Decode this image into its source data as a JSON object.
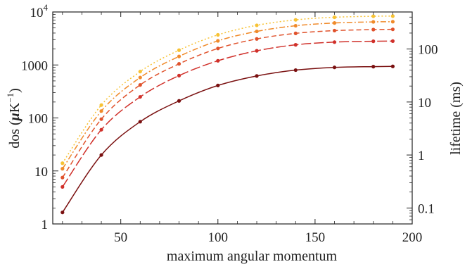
{
  "chart_data": {
    "type": "line",
    "xlabel": "maximum angular momentum",
    "ylabel_left": {
      "prefix": "dos (",
      "mu": "μ",
      "unit": "K",
      "exp": "−1",
      "suffix": ")"
    },
    "ylabel_right": "lifetime (ms)",
    "xlim": [
      15,
      200
    ],
    "ylim_left": [
      1,
      10000
    ],
    "ylim_right_ms": [
      0.05,
      500
    ],
    "yscale": "log",
    "grid": false,
    "x_ticks": [
      {
        "value": 50,
        "label": "50"
      },
      {
        "value": 100,
        "label": "100"
      },
      {
        "value": 150,
        "label": "150"
      },
      {
        "value": 200,
        "label": "200"
      }
    ],
    "y_left_ticks": [
      {
        "value": 1,
        "label": "1"
      },
      {
        "value": 10,
        "label": "10"
      },
      {
        "value": 100,
        "label": "100"
      },
      {
        "value": 1000,
        "label": "1000"
      },
      {
        "value": 10000,
        "base": "10",
        "exp": "4"
      }
    ],
    "y_right_ticks": [
      {
        "value": 0.1,
        "label": "0.1"
      },
      {
        "value": 1,
        "label": "1"
      },
      {
        "value": 10,
        "label": "10"
      },
      {
        "value": 100,
        "label": "100"
      }
    ],
    "x": [
      20,
      40,
      60,
      80,
      100,
      120,
      140,
      160,
      180,
      190
    ],
    "series": [
      {
        "color": "#7a1010",
        "dash": "solid",
        "values": [
          1.65,
          20,
          85,
          210,
          410,
          620,
          800,
          900,
          930,
          940
        ]
      },
      {
        "color": "#d0302a",
        "dash": "longdash",
        "values": [
          5,
          60,
          250,
          630,
          1200,
          1850,
          2400,
          2700,
          2800,
          2820
        ]
      },
      {
        "color": "#e0522c",
        "dash": "dash",
        "values": [
          7.5,
          95,
          420,
          1050,
          2050,
          3100,
          3950,
          4450,
          4650,
          4700
        ]
      },
      {
        "color": "#f08a2a",
        "dash": "dashdot",
        "values": [
          11,
          135,
          580,
          1450,
          2850,
          4300,
          5500,
          6200,
          6500,
          6550
        ]
      },
      {
        "color": "#f7c234",
        "dash": "dot",
        "values": [
          14,
          175,
          750,
          1900,
          3700,
          5600,
          7100,
          7950,
          8300,
          8350
        ]
      }
    ]
  }
}
